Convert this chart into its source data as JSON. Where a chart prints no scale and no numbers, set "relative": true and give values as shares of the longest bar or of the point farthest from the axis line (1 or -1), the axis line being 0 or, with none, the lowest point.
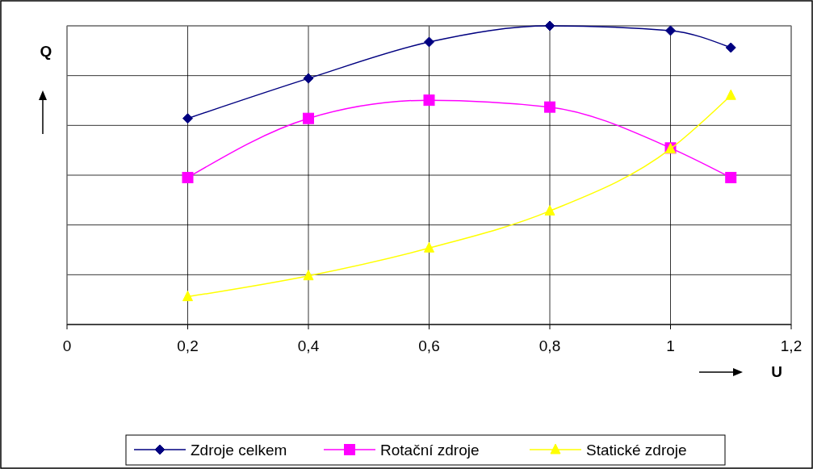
{
  "chart_data": {
    "type": "line",
    "relative": true,
    "xlabel": "U",
    "ylabel": "Q",
    "x": [
      0.2,
      0.4,
      0.6,
      0.8,
      1.0,
      1.1
    ],
    "xlim": [
      0,
      1.2
    ],
    "xticks": [
      0,
      {
        "value": 0.2,
        "label": "0,2"
      },
      {
        "value": 0.4,
        "label": "0,4"
      },
      {
        "value": 0.6,
        "label": "0,6"
      },
      {
        "value": 0.8,
        "label": "0,8"
      },
      1,
      {
        "value": 1.2,
        "label": "1,2"
      }
    ],
    "grid": true,
    "legend": "bottom",
    "series": [
      {
        "name": "Zdroje celkem",
        "color": "#000080",
        "marker": "diamond",
        "values": [
          0.69,
          0.824,
          0.946,
          1,
          0.984,
          0.927
        ]
      },
      {
        "name": "Rotační zdroje",
        "color": "#ff00ff",
        "marker": "square",
        "values": [
          0.492,
          0.69,
          0.751,
          0.728,
          0.591,
          0.492
        ]
      },
      {
        "name": "Statické zdroje",
        "color": "#ffff00",
        "marker": "triangle",
        "values": [
          0.093,
          0.163,
          0.256,
          0.38,
          0.588,
          0.767
        ]
      }
    ]
  }
}
